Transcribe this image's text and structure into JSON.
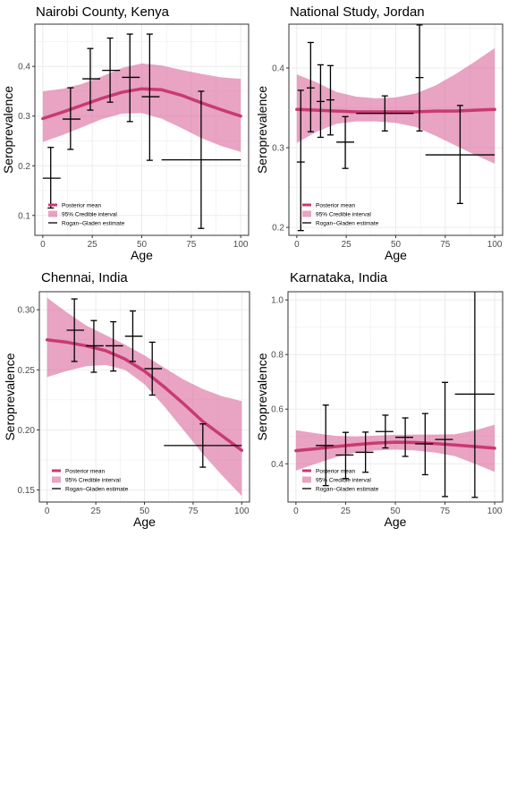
{
  "legend": {
    "mean_label": "Posterior mean",
    "ci_label": "95% Credible interval",
    "rg_label": "Rogan−Gladen estimate",
    "placement": "bottom-left inside panel"
  },
  "colors": {
    "mean_line": "#c93a72",
    "ci_band": "#d8679a",
    "ci_band_opacity": 0.6,
    "error_bars": "#000000",
    "grid": "#ebebeb",
    "panel_border": "#333333"
  },
  "chart_data": [
    {
      "type": "line",
      "title": "Nairobi County, Kenya",
      "xlabel": "Age",
      "ylabel": "Seroprevalence",
      "xlim": [
        -4,
        104
      ],
      "ylim": [
        0.06,
        0.485
      ],
      "xticks": [
        0,
        25,
        50,
        75,
        100
      ],
      "yticks": [
        0.1,
        0.2,
        0.3,
        0.4
      ],
      "yticks_labels": [
        "0.1",
        "0.2",
        "0.3",
        "0.4"
      ],
      "grid": true,
      "series": [
        {
          "name": "Posterior mean",
          "x": [
            0,
            10,
            20,
            30,
            40,
            50,
            60,
            70,
            80,
            90,
            100
          ],
          "y": [
            0.295,
            0.308,
            0.322,
            0.336,
            0.348,
            0.355,
            0.353,
            0.342,
            0.327,
            0.313,
            0.3
          ]
        },
        {
          "name": "95% Credible interval",
          "x": [
            0,
            10,
            20,
            30,
            40,
            50,
            60,
            70,
            80,
            90,
            100
          ],
          "lower": [
            0.248,
            0.262,
            0.278,
            0.294,
            0.305,
            0.306,
            0.295,
            0.276,
            0.256,
            0.24,
            0.228
          ],
          "upper": [
            0.35,
            0.355,
            0.365,
            0.38,
            0.397,
            0.406,
            0.402,
            0.393,
            0.385,
            0.378,
            0.375
          ]
        },
        {
          "name": "Rogan−Gladen estimate",
          "points": [
            {
              "x": 4,
              "xmin": 0,
              "xmax": 9,
              "y": 0.175,
              "ymin": 0.115,
              "ymax": 0.237
            },
            {
              "x": 14,
              "xmin": 10,
              "xmax": 19,
              "y": 0.294,
              "ymin": 0.233,
              "ymax": 0.357
            },
            {
              "x": 24,
              "xmin": 20,
              "xmax": 29,
              "y": 0.375,
              "ymin": 0.312,
              "ymax": 0.436
            },
            {
              "x": 34,
              "xmin": 30,
              "xmax": 39,
              "y": 0.392,
              "ymin": 0.328,
              "ymax": 0.457
            },
            {
              "x": 44,
              "xmin": 40,
              "xmax": 49,
              "y": 0.378,
              "ymin": 0.289,
              "ymax": 0.465
            },
            {
              "x": 54,
              "xmin": 50,
              "xmax": 59,
              "y": 0.339,
              "ymin": 0.211,
              "ymax": 0.465
            },
            {
              "x": 80,
              "xmin": 60,
              "xmax": 100,
              "y": 0.212,
              "ymin": 0.074,
              "ymax": 0.35
            }
          ]
        }
      ]
    },
    {
      "type": "line",
      "title": "National Study, Jordan",
      "xlabel": "Age",
      "ylabel": "Seroprevalence",
      "xlim": [
        -4,
        104
      ],
      "ylim": [
        0.19,
        0.455
      ],
      "xticks": [
        0,
        25,
        50,
        75,
        100
      ],
      "yticks": [
        0.2,
        0.3,
        0.4
      ],
      "yticks_labels": [
        "0.2",
        "0.3",
        "0.4"
      ],
      "grid": true,
      "series": [
        {
          "name": "Posterior mean",
          "x": [
            0,
            10,
            20,
            30,
            40,
            50,
            60,
            70,
            80,
            90,
            100
          ],
          "y": [
            0.348,
            0.347,
            0.346,
            0.345,
            0.345,
            0.345,
            0.345,
            0.346,
            0.346,
            0.347,
            0.348
          ]
        },
        {
          "name": "95% Credible interval",
          "x": [
            0,
            10,
            20,
            30,
            40,
            50,
            60,
            70,
            80,
            90,
            100
          ],
          "lower": [
            0.306,
            0.32,
            0.33,
            0.333,
            0.333,
            0.331,
            0.326,
            0.315,
            0.303,
            0.291,
            0.28
          ],
          "upper": [
            0.392,
            0.382,
            0.37,
            0.364,
            0.362,
            0.363,
            0.368,
            0.378,
            0.392,
            0.408,
            0.425
          ]
        },
        {
          "name": "Rogan−Gladen estimate",
          "points": [
            {
              "x": 2,
              "xmin": 0,
              "xmax": 4,
              "y": 0.282,
              "ymin": 0.196,
              "ymax": 0.372
            },
            {
              "x": 7,
              "xmin": 5,
              "xmax": 9,
              "y": 0.375,
              "ymin": 0.32,
              "ymax": 0.432
            },
            {
              "x": 12,
              "xmin": 10,
              "xmax": 14,
              "y": 0.358,
              "ymin": 0.313,
              "ymax": 0.404
            },
            {
              "x": 17,
              "xmin": 15,
              "xmax": 19,
              "y": 0.36,
              "ymin": 0.316,
              "ymax": 0.403
            },
            {
              "x": 24.5,
              "xmin": 20,
              "xmax": 29,
              "y": 0.307,
              "ymin": 0.274,
              "ymax": 0.339
            },
            {
              "x": 44.5,
              "xmin": 30,
              "xmax": 59,
              "y": 0.343,
              "ymin": 0.321,
              "ymax": 0.365
            },
            {
              "x": 62,
              "xmin": 60,
              "xmax": 64,
              "y": 0.388,
              "ymin": 0.321,
              "ymax": 0.454
            },
            {
              "x": 82.5,
              "xmin": 65,
              "xmax": 100,
              "y": 0.291,
              "ymin": 0.23,
              "ymax": 0.353
            }
          ]
        }
      ]
    },
    {
      "type": "line",
      "title": "Chennai, India",
      "xlabel": "Age",
      "ylabel": "Seroprevalence",
      "xlim": [
        -4,
        104
      ],
      "ylim": [
        0.14,
        0.315
      ],
      "xticks": [
        0,
        25,
        50,
        75,
        100
      ],
      "yticks": [
        0.15,
        0.2,
        0.25,
        0.3
      ],
      "yticks_labels": [
        "0.15",
        "0.20",
        "0.25",
        "0.30"
      ],
      "grid": true,
      "series": [
        {
          "name": "Posterior mean",
          "x": [
            0,
            10,
            20,
            30,
            40,
            50,
            60,
            70,
            80,
            90,
            100
          ],
          "y": [
            0.275,
            0.273,
            0.27,
            0.266,
            0.259,
            0.249,
            0.236,
            0.222,
            0.207,
            0.195,
            0.183
          ]
        },
        {
          "name": "95% Credible interval",
          "x": [
            0,
            10,
            20,
            30,
            40,
            50,
            60,
            70,
            80,
            90,
            100
          ],
          "lower": [
            0.244,
            0.249,
            0.253,
            0.254,
            0.25,
            0.238,
            0.22,
            0.2,
            0.18,
            0.162,
            0.145
          ],
          "upper": [
            0.31,
            0.298,
            0.287,
            0.279,
            0.271,
            0.262,
            0.252,
            0.242,
            0.234,
            0.228,
            0.224
          ]
        },
        {
          "name": "Rogan−Gladen estimate",
          "points": [
            {
              "x": 14,
              "xmin": 10,
              "xmax": 19,
              "y": 0.283,
              "ymin": 0.257,
              "ymax": 0.309
            },
            {
              "x": 24,
              "xmin": 20,
              "xmax": 29,
              "y": 0.27,
              "ymin": 0.248,
              "ymax": 0.291
            },
            {
              "x": 34,
              "xmin": 30,
              "xmax": 39,
              "y": 0.27,
              "ymin": 0.249,
              "ymax": 0.29
            },
            {
              "x": 44,
              "xmin": 40,
              "xmax": 49,
              "y": 0.278,
              "ymin": 0.257,
              "ymax": 0.299
            },
            {
              "x": 54,
              "xmin": 50,
              "xmax": 59,
              "y": 0.251,
              "ymin": 0.229,
              "ymax": 0.273
            },
            {
              "x": 80,
              "xmin": 60,
              "xmax": 100,
              "y": 0.187,
              "ymin": 0.169,
              "ymax": 0.205
            }
          ]
        }
      ]
    },
    {
      "type": "line",
      "title": "Karnataka, India",
      "xlabel": "Age",
      "ylabel": "Seroprevalence",
      "xlim": [
        -4,
        104
      ],
      "ylim": [
        0.26,
        1.03
      ],
      "xticks": [
        0,
        25,
        50,
        75,
        100
      ],
      "yticks": [
        0.4,
        0.6,
        0.8,
        1.0
      ],
      "yticks_labels": [
        "0.4",
        "0.6",
        "0.8",
        "1.0"
      ],
      "grid": true,
      "series": [
        {
          "name": "Posterior mean",
          "x": [
            0,
            10,
            20,
            30,
            40,
            50,
            60,
            70,
            80,
            90,
            100
          ],
          "y": [
            0.448,
            0.455,
            0.463,
            0.47,
            0.476,
            0.479,
            0.478,
            0.474,
            0.469,
            0.463,
            0.457
          ]
        },
        {
          "name": "95% Credible interval",
          "x": [
            0,
            10,
            20,
            30,
            40,
            50,
            60,
            70,
            80,
            90,
            100
          ],
          "lower": [
            0.375,
            0.4,
            0.424,
            0.44,
            0.449,
            0.452,
            0.449,
            0.441,
            0.428,
            0.4,
            0.37
          ],
          "upper": [
            0.523,
            0.512,
            0.502,
            0.5,
            0.503,
            0.506,
            0.507,
            0.507,
            0.508,
            0.522,
            0.543
          ]
        },
        {
          "name": "Rogan−Gladen estimate",
          "points": [
            {
              "x": 15,
              "xmin": 10,
              "xmax": 19,
              "y": 0.467,
              "ymin": 0.32,
              "ymax": 0.615
            },
            {
              "x": 25,
              "xmin": 20,
              "xmax": 29,
              "y": 0.432,
              "ymin": 0.346,
              "ymax": 0.515
            },
            {
              "x": 35,
              "xmin": 30,
              "xmax": 39,
              "y": 0.442,
              "ymin": 0.369,
              "ymax": 0.516
            },
            {
              "x": 45,
              "xmin": 40,
              "xmax": 49,
              "y": 0.518,
              "ymin": 0.458,
              "ymax": 0.578
            },
            {
              "x": 55,
              "xmin": 50,
              "xmax": 59,
              "y": 0.497,
              "ymin": 0.427,
              "ymax": 0.568
            },
            {
              "x": 65,
              "xmin": 60,
              "xmax": 69,
              "y": 0.473,
              "ymin": 0.36,
              "ymax": 0.584
            },
            {
              "x": 75,
              "xmin": 70,
              "xmax": 79,
              "y": 0.489,
              "ymin": 0.28,
              "ymax": 0.698
            },
            {
              "x": 90,
              "xmin": 80,
              "xmax": 100,
              "y": 0.655,
              "ymin": 0.277,
              "ymax": 1.035
            }
          ]
        }
      ]
    }
  ]
}
